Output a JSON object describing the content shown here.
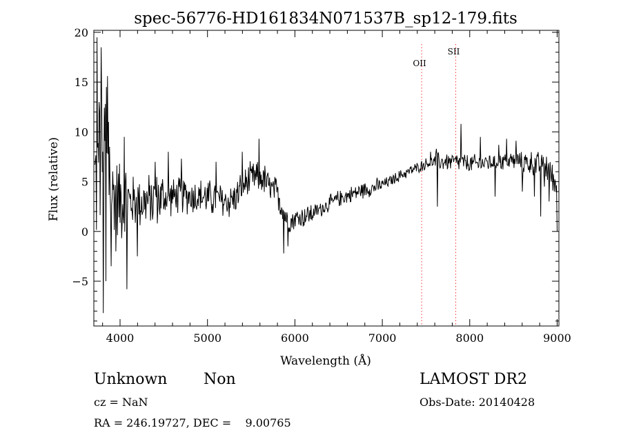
{
  "chart_data": {
    "type": "line",
    "title": "spec-56776-HD161834N071537B_sp12-179.fits",
    "xlabel": "Wavelength (Å)",
    "ylabel": "Flux (relative)",
    "xlim": [
      3700,
      9020
    ],
    "ylim": [
      -9.5,
      20.2
    ],
    "x_ticks": [
      4000,
      5000,
      6000,
      7000,
      8000,
      9000
    ],
    "y_ticks": [
      -5,
      0,
      5,
      10,
      15,
      20
    ],
    "line_color": "#000000",
    "marker_color": "#ff3333",
    "markers": [
      {
        "label": "OII",
        "x": 7450
      },
      {
        "label": "SII",
        "x": 7840
      }
    ],
    "anchors": [
      [
        3720,
        5
      ],
      [
        3750,
        6
      ],
      [
        3800,
        7
      ],
      [
        3850,
        6
      ],
      [
        3900,
        4
      ],
      [
        4000,
        3.2
      ],
      [
        4100,
        3.0
      ],
      [
        4200,
        3.0
      ],
      [
        4300,
        3.0
      ],
      [
        4400,
        3.2
      ],
      [
        4500,
        3.4
      ],
      [
        4600,
        3.5
      ],
      [
        4700,
        3.6
      ],
      [
        4800,
        3.6
      ],
      [
        4900,
        3.5
      ],
      [
        5000,
        3.4
      ],
      [
        5100,
        3.2
      ],
      [
        5200,
        3.0
      ],
      [
        5300,
        3.2
      ],
      [
        5400,
        4.5
      ],
      [
        5500,
        5.3
      ],
      [
        5600,
        5.5
      ],
      [
        5650,
        5.2
      ],
      [
        5700,
        4.5
      ],
      [
        5750,
        4.0
      ],
      [
        5800,
        3.8
      ],
      [
        5850,
        2.6
      ],
      [
        5900,
        1.4
      ],
      [
        5950,
        1.0
      ],
      [
        6000,
        1.3
      ],
      [
        6100,
        1.5
      ],
      [
        6200,
        1.8
      ],
      [
        6300,
        2.3
      ],
      [
        6400,
        2.8
      ],
      [
        6500,
        3.3
      ],
      [
        6600,
        3.6
      ],
      [
        6700,
        3.9
      ],
      [
        6800,
        4.2
      ],
      [
        6900,
        4.4
      ],
      [
        7000,
        4.7
      ],
      [
        7100,
        5.1
      ],
      [
        7200,
        5.6
      ],
      [
        7300,
        6.0
      ],
      [
        7400,
        6.4
      ],
      [
        7500,
        6.8
      ],
      [
        7600,
        7.0
      ],
      [
        7700,
        7.0
      ],
      [
        7800,
        7.0
      ],
      [
        7900,
        6.9
      ],
      [
        8000,
        6.8
      ],
      [
        8100,
        6.8
      ],
      [
        8200,
        6.9
      ],
      [
        8300,
        7.0
      ],
      [
        8400,
        7.1
      ],
      [
        8500,
        7.1
      ],
      [
        8600,
        7.0
      ],
      [
        8700,
        6.8
      ],
      [
        8800,
        6.6
      ],
      [
        8900,
        6.2
      ],
      [
        8950,
        5.5
      ],
      [
        9000,
        4.5
      ]
    ],
    "features": [
      [
        3735,
        19.5
      ],
      [
        3760,
        13
      ],
      [
        3785,
        18.5
      ],
      [
        3800,
        8
      ],
      [
        3810,
        -8.2
      ],
      [
        3830,
        12.8
      ],
      [
        3845,
        14.5
      ],
      [
        3855,
        15.6
      ],
      [
        3870,
        11
      ],
      [
        3880,
        8.5
      ],
      [
        3840,
        -5
      ],
      [
        3900,
        -3.5
      ],
      [
        3950,
        -2
      ],
      [
        4080,
        -5.8
      ],
      [
        4050,
        9.5
      ],
      [
        4200,
        -2.5
      ],
      [
        4400,
        7
      ],
      [
        4550,
        8
      ],
      [
        4700,
        7.3
      ],
      [
        5100,
        7
      ],
      [
        5400,
        8
      ],
      [
        5590,
        9.3
      ],
      [
        5870,
        -2.2
      ],
      [
        5920,
        -1.5
      ],
      [
        7550,
        8
      ],
      [
        7620,
        8.3
      ],
      [
        7630,
        2.5
      ],
      [
        7900,
        10.8
      ],
      [
        8120,
        9.5
      ],
      [
        8330,
        8.7
      ],
      [
        8290,
        3.5
      ],
      [
        8420,
        9.3
      ],
      [
        8530,
        9.1
      ],
      [
        8580,
        7
      ],
      [
        8600,
        4
      ],
      [
        8720,
        6
      ],
      [
        8740,
        3.5
      ],
      [
        8810,
        1.5
      ],
      [
        8830,
        6.5
      ],
      [
        8855,
        4.5
      ],
      [
        8880,
        7.5
      ],
      [
        8910,
        3
      ],
      [
        8935,
        5
      ],
      [
        8970,
        4
      ]
    ]
  },
  "info": {
    "object_class": "Unknown",
    "subclass": "Non",
    "cz": "cz = NaN",
    "radec": "RA = 246.19727, DEC =    9.00765",
    "survey": "LAMOST DR2",
    "obs_date": "Obs-Date: 20140428"
  }
}
